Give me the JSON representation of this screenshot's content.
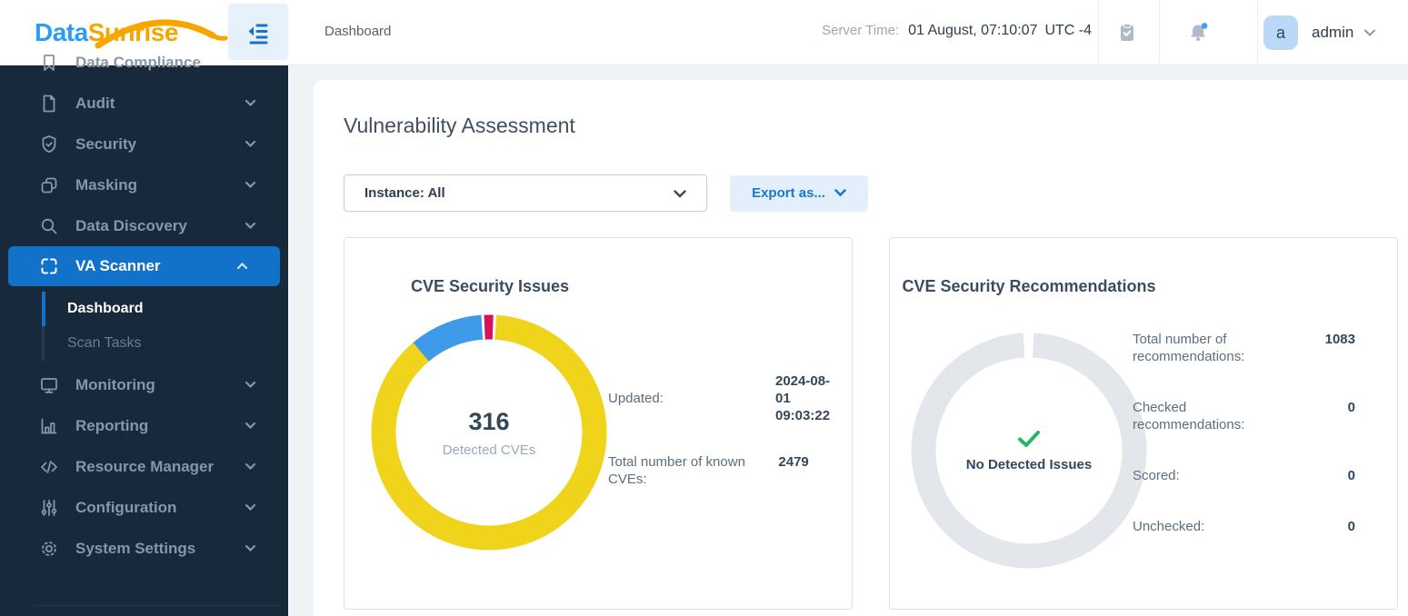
{
  "brand": {
    "name_part1": "Data",
    "name_part2": "Sunrise"
  },
  "header": {
    "breadcrumb": "Dashboard",
    "server_time_label": "Server Time:",
    "server_time_value": "01 August, 07:10:07",
    "server_time_zone": "UTC -4",
    "user": {
      "initial": "a",
      "name": "admin"
    }
  },
  "sidebar": {
    "items": [
      {
        "label": "Data Compliance",
        "icon": "bookmark-icon"
      },
      {
        "label": "Audit",
        "icon": "document-icon",
        "expandable": true
      },
      {
        "label": "Security",
        "icon": "shield-check-icon",
        "expandable": true
      },
      {
        "label": "Masking",
        "icon": "copy-icon",
        "expandable": true
      },
      {
        "label": "Data Discovery",
        "icon": "search-icon",
        "expandable": true
      },
      {
        "label": "VA Scanner",
        "icon": "scan-icon",
        "expandable": true,
        "expanded": true,
        "active": true
      },
      {
        "label": "Dashboard",
        "sub": true,
        "active": true
      },
      {
        "label": "Scan Tasks",
        "sub": true
      },
      {
        "label": "Monitoring",
        "icon": "monitor-icon",
        "expandable": true
      },
      {
        "label": "Reporting",
        "icon": "bar-chart-icon",
        "expandable": true
      },
      {
        "label": "Resource Manager",
        "icon": "code-icon",
        "expandable": true
      },
      {
        "label": "Configuration",
        "icon": "sliders-icon",
        "expandable": true
      },
      {
        "label": "System Settings",
        "icon": "gear-icon",
        "expandable": true
      }
    ]
  },
  "main": {
    "title": "Vulnerability Assessment",
    "instance_filter_value": "Instance: All",
    "export_button_label": "Export as...",
    "cards": [
      {
        "title": "CVE Security Issues",
        "center_value": "316",
        "center_label": "Detected CVEs",
        "stats": [
          {
            "label": "Updated:",
            "value": "2024-08-01 09:03:22"
          },
          {
            "label": "Total number of known CVEs:",
            "value": "2479"
          }
        ]
      },
      {
        "title": "CVE Security Recommendations",
        "center_label": "No Detected Issues",
        "stats": [
          {
            "label": "Total number of recommendations:",
            "value": "1083"
          },
          {
            "label": "Checked recommendations:",
            "value": "0"
          },
          {
            "label": "Scored:",
            "value": "0"
          },
          {
            "label": "Unchecked:",
            "value": "0"
          }
        ]
      }
    ]
  },
  "chart_data": [
    {
      "type": "pie",
      "variant": "donut",
      "title": "CVE Security Issues",
      "center_value": 316,
      "center_label": "Detected CVEs",
      "updated": "2024-08-01 09:03:22",
      "total_known_cves": 2479,
      "legend": false,
      "segments": [
        {
          "name": "cves-yellow",
          "color": "#F0D41C",
          "pct": 100,
          "start_deg": 0
        },
        {
          "name": "cves-blue",
          "color": "#3E9BE9",
          "pct": 10.3,
          "start_deg": 230
        },
        {
          "name": "segment-separator",
          "color": "#FFFFFF",
          "pct": 2.0,
          "start_deg": 266.4
        },
        {
          "name": "cves-red",
          "color": "#D5125A",
          "pct": 1.2,
          "start_deg": 267.8
        }
      ]
    },
    {
      "type": "pie",
      "variant": "donut",
      "title": "CVE Security Recommendations",
      "center_label": "No Detected Issues",
      "status": "no-issues",
      "legend": false,
      "segments": [
        {
          "name": "recommendations-gray",
          "color": "#E3E7EB",
          "pct": 98.6,
          "start_deg": 272.5
        }
      ]
    }
  ],
  "colors": {
    "accent_blue": "#1272C9",
    "sidebar_bg": "#17293B",
    "page_bg": "#EFF3F6",
    "success_green": "#27B567",
    "export_btn_bg": "#E3F0FB",
    "export_btn_text": "#1777D1",
    "notification_dot": "#41A1F5"
  }
}
